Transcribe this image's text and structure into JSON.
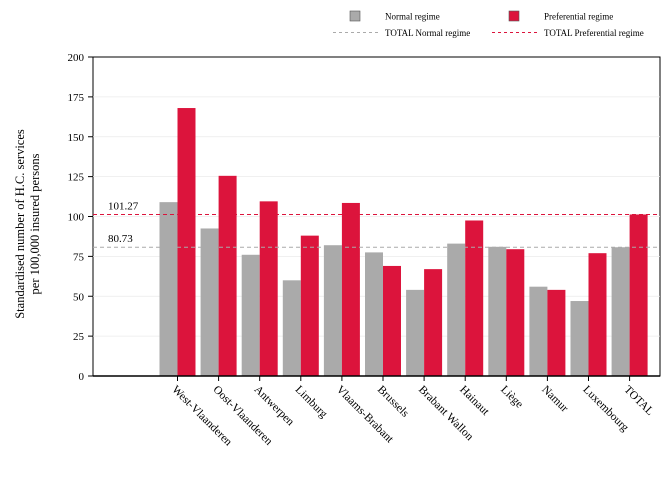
{
  "chart_data": {
    "type": "bar",
    "title": "",
    "ylabel": [
      "Standardised number of H.C. services",
      "per 100,000 insured persons"
    ],
    "xlabel": "",
    "ylim": [
      0,
      200
    ],
    "yticks": [
      0,
      25,
      50,
      75,
      100,
      125,
      150,
      175,
      200
    ],
    "categories": [
      "West-Vlaanderen",
      "Oost-Vlaanderen",
      "Antwerpen",
      "Limburg",
      "Vlaams-Brabant",
      "Brussels",
      "Brabant Wallon",
      "Hainaut",
      "Liège",
      "Namur",
      "Luxembourg",
      "TOTAL"
    ],
    "series": [
      {
        "name": "Normal regime",
        "color": "#aaaaaa",
        "values": [
          109,
          92.5,
          76,
          60,
          82,
          77.5,
          54,
          83,
          81,
          56,
          47,
          80.73
        ]
      },
      {
        "name": "Preferential regime",
        "color": "#dc143c",
        "values": [
          168,
          125.5,
          109.5,
          88,
          108.5,
          69,
          67,
          97.5,
          79.5,
          54,
          77,
          101.27
        ]
      }
    ],
    "reference_lines": [
      {
        "name": "TOTAL Normal regime",
        "value": 80.73,
        "label": "80.73",
        "color": "#aaaaaa",
        "style": "dashed"
      },
      {
        "name": "TOTAL Preferential regime",
        "value": 101.27,
        "label": "101.27",
        "color": "#dc143c",
        "style": "dashed"
      }
    ],
    "legend_position": "top-right",
    "grid": true
  }
}
